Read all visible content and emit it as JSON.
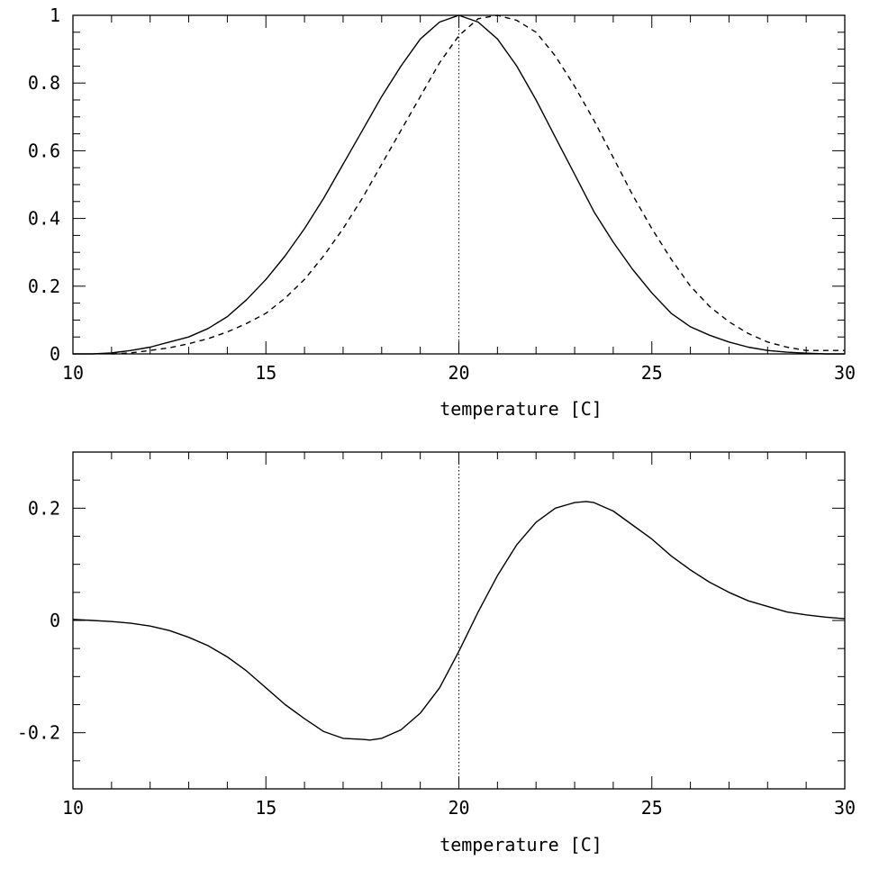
{
  "chart_data": [
    {
      "type": "line",
      "title": "",
      "xlabel": "temperature [C]",
      "ylabel": "",
      "xlim": [
        10,
        30
      ],
      "ylim": [
        0,
        1.0
      ],
      "x_ticks": [
        10,
        15,
        20,
        25,
        30
      ],
      "y_ticks": [
        0,
        0.2,
        0.4,
        0.6,
        0.8,
        1
      ],
      "x_tick_labels": [
        "10",
        "15",
        "20",
        "25",
        "30"
      ],
      "y_tick_labels": [
        "0",
        "0.2",
        "0.4",
        "0.6",
        "0.8",
        "1"
      ],
      "grid": false,
      "reference_line": {
        "x": 20,
        "style": "dotted"
      },
      "series": [
        {
          "style": "solid",
          "x": [
            10,
            10.5,
            11,
            11.5,
            12,
            12.5,
            13,
            13.5,
            14,
            14.5,
            15,
            15.5,
            16,
            16.5,
            17,
            17.5,
            18,
            18.5,
            19,
            19.5,
            20,
            20.5,
            21,
            21.5,
            22,
            22.5,
            23,
            23.5,
            24,
            24.5,
            25,
            25.5,
            26,
            26.5,
            27,
            27.5,
            28,
            28.5,
            29,
            29.5,
            30
          ],
          "values": [
            0.0,
            0.0,
            0.003,
            0.01,
            0.02,
            0.035,
            0.05,
            0.075,
            0.11,
            0.16,
            0.22,
            0.29,
            0.37,
            0.46,
            0.56,
            0.66,
            0.76,
            0.85,
            0.93,
            0.98,
            1.0,
            0.98,
            0.93,
            0.85,
            0.75,
            0.64,
            0.53,
            0.42,
            0.33,
            0.25,
            0.18,
            0.12,
            0.08,
            0.055,
            0.035,
            0.02,
            0.01,
            0.005,
            0.002,
            0.0,
            0.0
          ]
        },
        {
          "style": "dashed",
          "x": [
            11,
            11.5,
            12,
            12.5,
            13,
            13.5,
            14,
            14.5,
            15,
            15.5,
            16,
            16.5,
            17,
            17.5,
            18,
            18.5,
            19,
            19.5,
            20,
            20.5,
            21,
            21.5,
            22,
            22.5,
            23,
            23.5,
            24,
            24.5,
            25,
            25.5,
            26,
            26.5,
            27,
            27.5,
            28,
            28.5,
            29,
            29.5,
            30
          ],
          "values": [
            0.0,
            0.003,
            0.01,
            0.018,
            0.03,
            0.045,
            0.065,
            0.09,
            0.12,
            0.165,
            0.22,
            0.29,
            0.37,
            0.46,
            0.56,
            0.66,
            0.76,
            0.86,
            0.94,
            0.99,
            1.0,
            0.985,
            0.95,
            0.88,
            0.79,
            0.69,
            0.58,
            0.47,
            0.37,
            0.28,
            0.2,
            0.14,
            0.095,
            0.06,
            0.035,
            0.02,
            0.01,
            0.01,
            0.01
          ]
        }
      ]
    },
    {
      "type": "line",
      "title": "",
      "xlabel": "temperature [C]",
      "ylabel": "",
      "xlim": [
        10,
        30
      ],
      "ylim": [
        -0.3,
        0.3
      ],
      "x_ticks": [
        10,
        15,
        20,
        25,
        30
      ],
      "y_ticks": [
        -0.2,
        0,
        0.2
      ],
      "x_tick_labels": [
        "10",
        "15",
        "20",
        "25",
        "30"
      ],
      "y_tick_labels": [
        "-0.2",
        "0",
        "0.2"
      ],
      "grid": false,
      "reference_line": {
        "x": 20,
        "style": "dotted"
      },
      "series": [
        {
          "style": "solid",
          "x": [
            10,
            10.5,
            11,
            11.5,
            12,
            12.5,
            13,
            13.5,
            14,
            14.5,
            15,
            15.5,
            16,
            16.5,
            17,
            17.5,
            17.7,
            18,
            18.5,
            19,
            19.5,
            20,
            20.5,
            21,
            21.5,
            22,
            22.5,
            23,
            23.3,
            23.5,
            24,
            24.5,
            25,
            25.5,
            26,
            26.5,
            27,
            27.5,
            28,
            28.5,
            29,
            29.5,
            30
          ],
          "values": [
            0.002,
            0.0,
            -0.002,
            -0.005,
            -0.01,
            -0.018,
            -0.03,
            -0.045,
            -0.065,
            -0.09,
            -0.12,
            -0.15,
            -0.175,
            -0.198,
            -0.21,
            -0.212,
            -0.213,
            -0.21,
            -0.195,
            -0.165,
            -0.12,
            -0.055,
            0.015,
            0.08,
            0.135,
            0.175,
            0.2,
            0.21,
            0.212,
            0.21,
            0.195,
            0.17,
            0.145,
            0.115,
            0.09,
            0.068,
            0.05,
            0.035,
            0.025,
            0.015,
            0.01,
            0.006,
            0.003
          ]
        }
      ]
    }
  ]
}
